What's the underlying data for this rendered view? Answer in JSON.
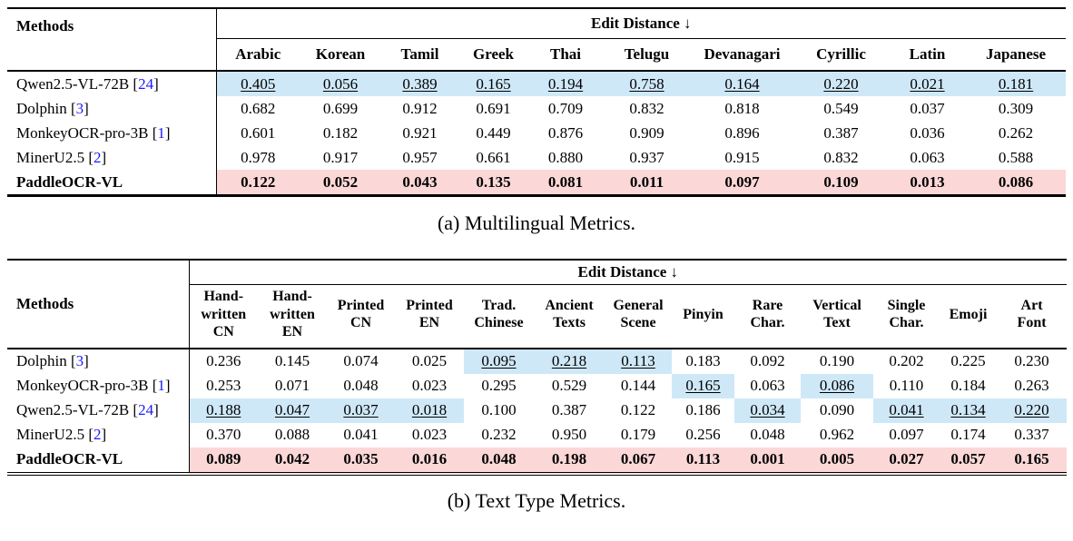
{
  "colors": {
    "highlight_blue": "#cfe8f8",
    "highlight_pink": "#fcd7d7",
    "citation_blue": "#1a1aff"
  },
  "tables": [
    {
      "id": "a",
      "caption": "(a) Multilingual Metrics.",
      "methods_label": "Methods",
      "group_header": "Edit Distance ↓",
      "columns": [
        "Arabic",
        "Korean",
        "Tamil",
        "Greek",
        "Thai",
        "Telugu",
        "Devanagari",
        "Cyrillic",
        "Latin",
        "Japanese"
      ],
      "rows": [
        {
          "name": "Qwen2.5-VL-72B",
          "cite": "24",
          "highlight": "blue",
          "cells": [
            {
              "v": "0.405",
              "u": true
            },
            {
              "v": "0.056",
              "u": true
            },
            {
              "v": "0.389",
              "u": true
            },
            {
              "v": "0.165",
              "u": true
            },
            {
              "v": "0.194",
              "u": true
            },
            {
              "v": "0.758",
              "u": true
            },
            {
              "v": "0.164",
              "u": true
            },
            {
              "v": "0.220",
              "u": true
            },
            {
              "v": "0.021",
              "u": true
            },
            {
              "v": "0.181",
              "u": true
            }
          ]
        },
        {
          "name": "Dolphin",
          "cite": "3",
          "cells": [
            "0.682",
            "0.699",
            "0.912",
            "0.691",
            "0.709",
            "0.832",
            "0.818",
            "0.549",
            "0.037",
            "0.309"
          ]
        },
        {
          "name": "MonkeyOCR-pro-3B",
          "cite": "1",
          "cells": [
            "0.601",
            "0.182",
            "0.921",
            "0.449",
            "0.876",
            "0.909",
            "0.896",
            "0.387",
            "0.036",
            "0.262"
          ]
        },
        {
          "name": "MinerU2.5",
          "cite": "2",
          "cells": [
            "0.978",
            "0.917",
            "0.957",
            "0.661",
            "0.880",
            "0.937",
            "0.915",
            "0.832",
            "0.063",
            "0.588"
          ]
        },
        {
          "name": "PaddleOCR-VL",
          "cite": null,
          "bold": true,
          "highlight": "pink",
          "cells": [
            "0.122",
            "0.052",
            "0.043",
            "0.135",
            "0.081",
            "0.011",
            "0.097",
            "0.109",
            "0.013",
            "0.086"
          ]
        }
      ]
    },
    {
      "id": "b",
      "caption": "(b) Text Type Metrics.",
      "methods_label": "Methods",
      "group_header": "Edit Distance ↓",
      "columns": [
        "Hand-\nwritten\nCN",
        "Hand-\nwritten\nEN",
        "Printed\nCN",
        "Printed\nEN",
        "Trad.\nChinese",
        "Ancient\nTexts",
        "General\nScene",
        "Pinyin",
        "Rare\nChar.",
        "Vertical\nText",
        "Single\nChar.",
        "Emoji",
        "Art\nFont"
      ],
      "rows": [
        {
          "name": "Dolphin",
          "cite": "3",
          "cells": [
            "0.236",
            "0.145",
            "0.074",
            "0.025",
            {
              "v": "0.095",
              "u": true,
              "hl": true
            },
            {
              "v": "0.218",
              "u": true,
              "hl": true
            },
            {
              "v": "0.113",
              "u": true,
              "hl": true
            },
            "0.183",
            "0.092",
            "0.190",
            "0.202",
            "0.225",
            "0.230"
          ]
        },
        {
          "name": "MonkeyOCR-pro-3B",
          "cite": "1",
          "cells": [
            "0.253",
            "0.071",
            "0.048",
            "0.023",
            "0.295",
            "0.529",
            "0.144",
            {
              "v": "0.165",
              "u": true,
              "hl": true
            },
            "0.063",
            {
              "v": "0.086",
              "u": true,
              "hl": true
            },
            "0.110",
            "0.184",
            "0.263"
          ]
        },
        {
          "name": "Qwen2.5-VL-72B",
          "cite": "24",
          "cells": [
            {
              "v": "0.188",
              "u": true,
              "hl": true
            },
            {
              "v": "0.047",
              "u": true,
              "hl": true
            },
            {
              "v": "0.037",
              "u": true,
              "hl": true
            },
            {
              "v": "0.018",
              "u": true,
              "hl": true
            },
            "0.100",
            "0.387",
            "0.122",
            "0.186",
            {
              "v": "0.034",
              "u": true,
              "hl": true
            },
            "0.090",
            {
              "v": "0.041",
              "u": true,
              "hl": true
            },
            {
              "v": "0.134",
              "u": true,
              "hl": true
            },
            {
              "v": "0.220",
              "u": true,
              "hl": true
            }
          ]
        },
        {
          "name": "MinerU2.5",
          "cite": "2",
          "cells": [
            "0.370",
            "0.088",
            "0.041",
            "0.023",
            "0.232",
            "0.950",
            "0.179",
            "0.256",
            "0.048",
            "0.962",
            "0.097",
            "0.174",
            "0.337"
          ]
        },
        {
          "name": "PaddleOCR-VL",
          "cite": null,
          "bold": true,
          "highlight": "pink",
          "cells": [
            "0.089",
            "0.042",
            "0.035",
            "0.016",
            "0.048",
            "0.198",
            "0.067",
            "0.113",
            "0.001",
            "0.005",
            "0.027",
            "0.057",
            "0.165"
          ]
        }
      ]
    }
  ]
}
